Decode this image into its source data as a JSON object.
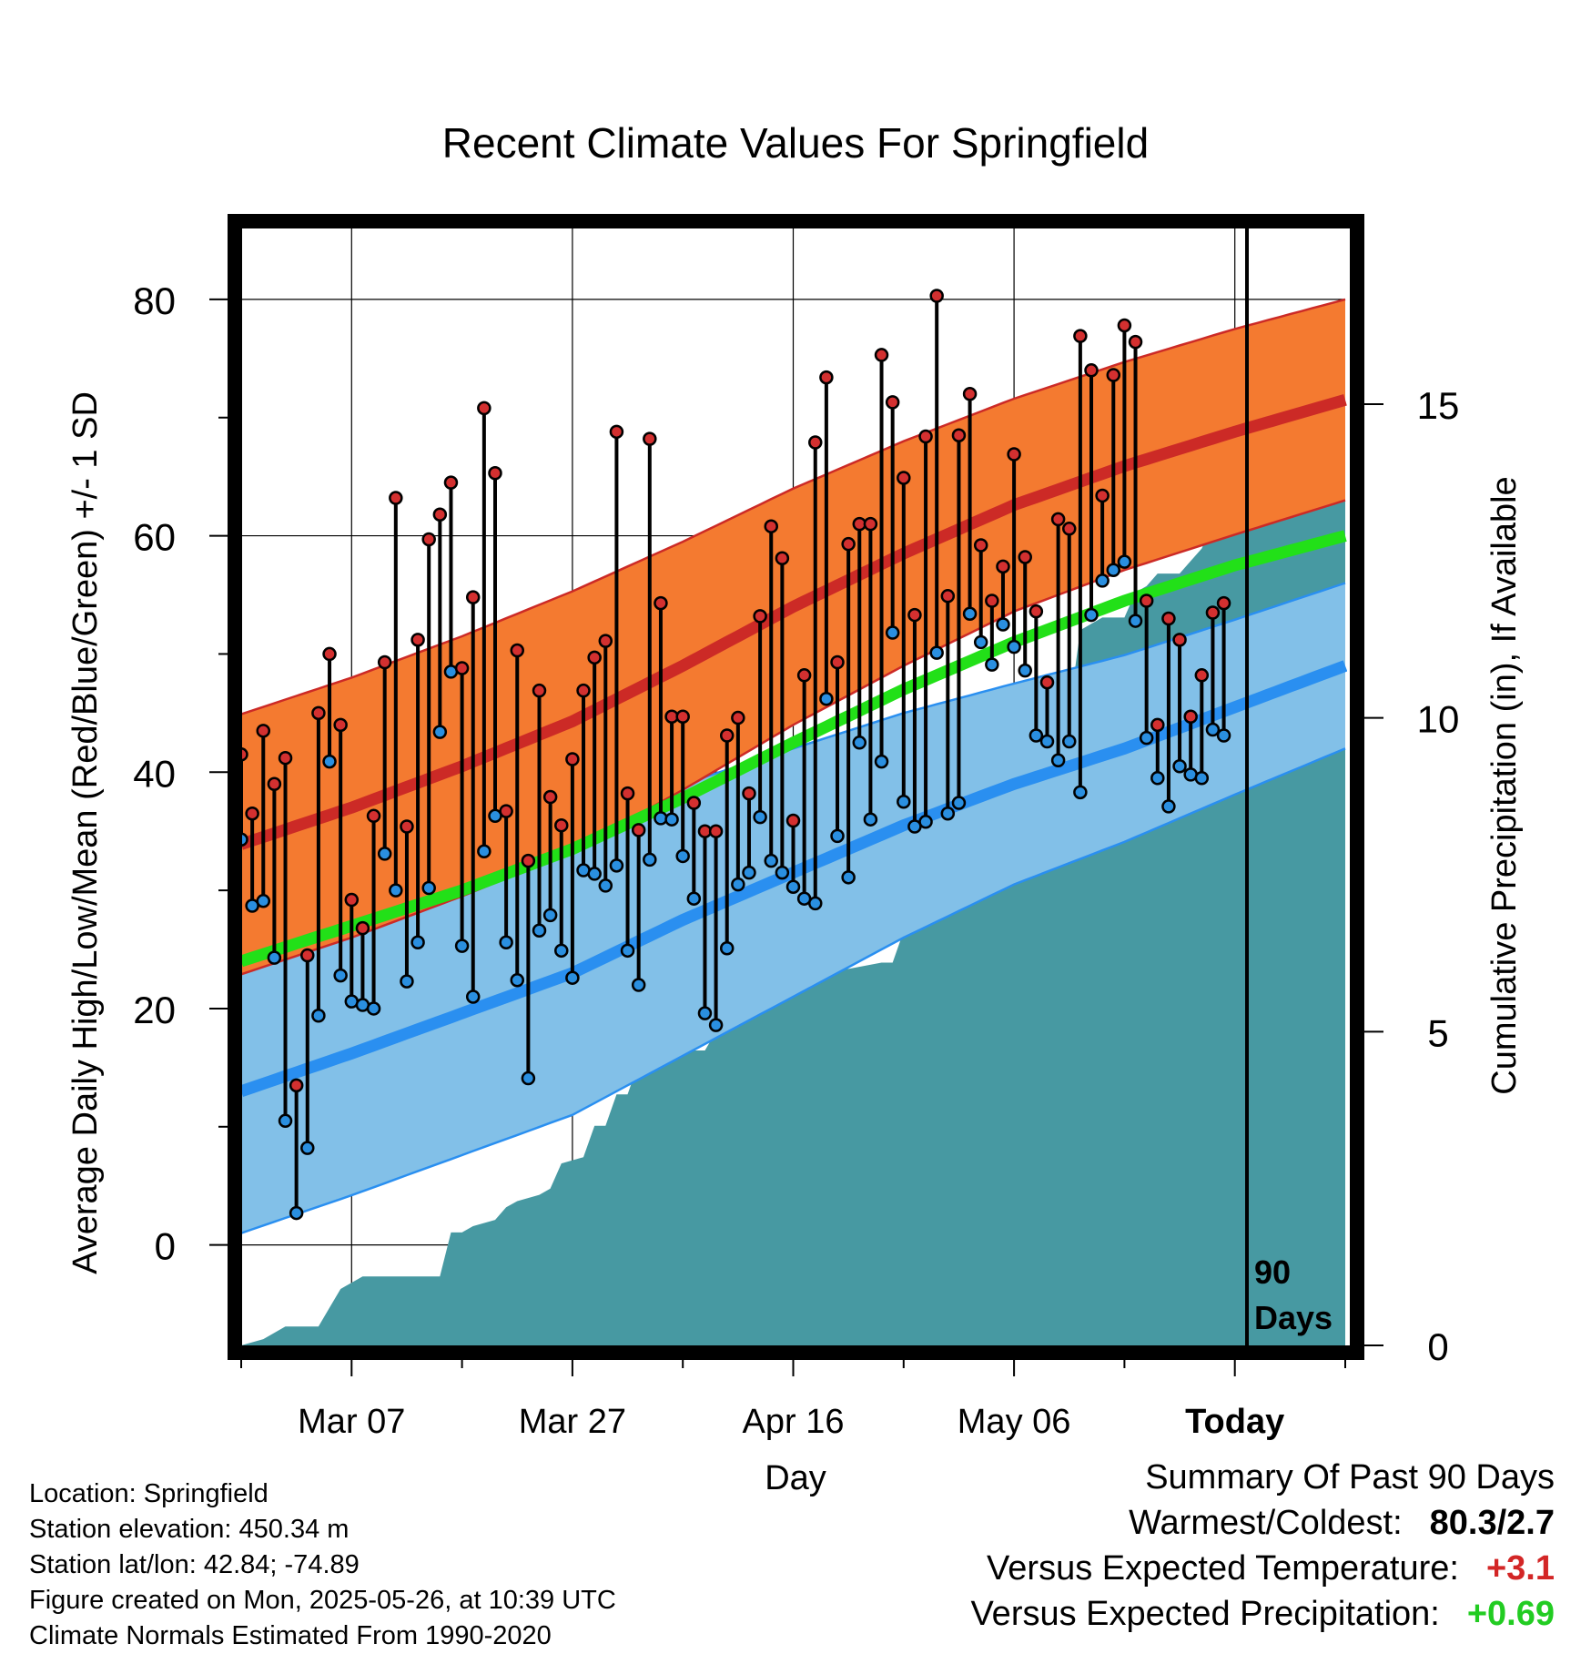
{
  "chart_data": {
    "type": "line",
    "title": "Recent Climate Values For Springfield",
    "xlabel": "Day",
    "ylabel": "Average Daily High/Low/Mean (Red/Blue/Green) +/- 1 SD",
    "y2label": "Cumulative Precipitation (in), If Available",
    "ylim": [
      -8.5,
      86
    ],
    "y2lim": [
      0,
      17.8
    ],
    "yticks": [
      "0",
      "20",
      "40",
      "60",
      "80"
    ],
    "y2ticks": [
      "0",
      "5",
      "10",
      "15"
    ],
    "xticks": [
      "Mar 07",
      "Mar 27",
      "Apr 16",
      "May 06",
      "Today"
    ],
    "xtick_days": [
      10,
      30,
      50,
      70,
      90
    ],
    "xlim": [
      0,
      100
    ],
    "today_label": "90 Days",
    "grid": true,
    "colors": {
      "high_band": "#f47a30",
      "high_line": "#cc2a26",
      "low_band": "#82c0e8",
      "low_line": "#2a8ff0",
      "mean_line": "#22e018",
      "precip": "#4799a2",
      "high_dot": "#d33030",
      "low_dot": "#2a8fe0"
    },
    "normals": {
      "days": [
        0,
        10,
        20,
        30,
        40,
        50,
        60,
        70,
        80,
        90,
        100
      ],
      "high_mean": [
        33.9,
        37.0,
        40.5,
        44.3,
        49.0,
        54.0,
        58.5,
        62.6,
        65.9,
        68.8,
        71.5
      ],
      "high_sd": [
        11.0,
        11.0,
        11.0,
        11.0,
        10.5,
        10.0,
        9.5,
        9.0,
        8.8,
        8.7,
        8.5
      ],
      "low_mean": [
        13.0,
        16.2,
        19.6,
        23.0,
        27.5,
        31.5,
        35.5,
        39.0,
        42.0,
        45.5,
        49.0
      ],
      "low_sd": [
        12.0,
        12.0,
        12.0,
        12.0,
        11.5,
        10.5,
        9.5,
        8.5,
        7.9,
        7.4,
        7.0
      ],
      "mean": [
        24.0,
        27.0,
        30.0,
        33.5,
        37.8,
        42.5,
        47.0,
        51.0,
        54.5,
        57.5,
        60.0
      ]
    },
    "series": [
      {
        "name": "High",
        "values": [
          41.5,
          36.5,
          43.5,
          39.0,
          41.2,
          13.5,
          24.5,
          45.0,
          50.0,
          44.0,
          29.2,
          26.8,
          36.3,
          49.3,
          63.2,
          35.4,
          51.2,
          59.7,
          61.8,
          64.5,
          48.8,
          54.8,
          70.8,
          65.3,
          36.7,
          50.3,
          32.5,
          46.9,
          37.9,
          35.5,
          41.1,
          46.9,
          49.7,
          51.1,
          68.8,
          38.2,
          35.1,
          68.2,
          54.3,
          44.7,
          44.7,
          37.4,
          35.0,
          35.0,
          43.1,
          44.6,
          38.2,
          53.2,
          60.8,
          58.1,
          35.9,
          48.2,
          67.9,
          73.4,
          49.3,
          59.3,
          61.0,
          61.0,
          75.3,
          71.3,
          64.9,
          53.3,
          68.4,
          80.3,
          54.9,
          68.5,
          72.0,
          59.2,
          54.5,
          57.4,
          66.9,
          58.2,
          53.6,
          47.6,
          61.4,
          60.6,
          76.9,
          74.0,
          63.4,
          73.6,
          77.8,
          76.4,
          54.5,
          44.0,
          53.0,
          51.2,
          44.7,
          48.2,
          53.5,
          54.3
        ]
      },
      {
        "name": "Low",
        "values": [
          34.3,
          28.7,
          29.1,
          24.3,
          10.5,
          2.7,
          8.2,
          19.4,
          40.9,
          22.8,
          20.6,
          20.3,
          20.0,
          33.1,
          30.0,
          22.3,
          25.6,
          30.2,
          43.4,
          48.5,
          25.3,
          21.0,
          33.3,
          36.3,
          25.6,
          22.4,
          14.1,
          26.6,
          27.9,
          24.9,
          22.6,
          31.7,
          31.4,
          30.4,
          32.1,
          24.9,
          22.0,
          32.6,
          36.1,
          36.0,
          32.9,
          29.3,
          19.6,
          18.6,
          25.1,
          30.5,
          31.5,
          36.2,
          32.5,
          31.5,
          30.3,
          29.3,
          28.9,
          46.2,
          34.6,
          31.1,
          42.5,
          36.0,
          40.9,
          51.8,
          37.5,
          35.4,
          35.8,
          50.1,
          36.5,
          37.4,
          53.4,
          51.0,
          49.1,
          52.5,
          50.6,
          48.6,
          43.1,
          42.6,
          41.0,
          42.6,
          38.3,
          53.3,
          56.2,
          57.1,
          57.8,
          52.8,
          42.9,
          39.5,
          37.1,
          40.5,
          39.8,
          39.5,
          43.6,
          43.1
        ]
      },
      {
        "name": "Cumulative Precipitation",
        "x": [
          0,
          2,
          4,
          5,
          6,
          7,
          8,
          9,
          10,
          11,
          17,
          18,
          19,
          20,
          21,
          23,
          24,
          25,
          27,
          28,
          29,
          31,
          32,
          33,
          34,
          35,
          36,
          37,
          38,
          39,
          40,
          41,
          42,
          43,
          44,
          45,
          46,
          47,
          48,
          49,
          50,
          52,
          53,
          54,
          55,
          58,
          59,
          60,
          61,
          62,
          63,
          64,
          65,
          66,
          67,
          68,
          69,
          70,
          71,
          72,
          73,
          74,
          75,
          76,
          77,
          78,
          79,
          80,
          81,
          82,
          83,
          84,
          85,
          86,
          87,
          88,
          89,
          90,
          100
        ],
        "values": [
          0.0,
          0.1,
          0.3,
          0.3,
          0.3,
          0.3,
          0.6,
          0.9,
          1.0,
          1.1,
          1.1,
          1.1,
          1.8,
          1.8,
          1.9,
          2.0,
          2.2,
          2.3,
          2.4,
          2.5,
          2.9,
          3.0,
          3.5,
          3.5,
          4.0,
          4.0,
          4.5,
          4.5,
          4.5,
          4.6,
          4.6,
          4.7,
          4.7,
          5.0,
          5.3,
          5.3,
          5.4,
          5.6,
          5.6,
          5.6,
          5.6,
          6.0,
          6.0,
          6.0,
          6.0,
          6.1,
          6.1,
          6.6,
          6.6,
          7.8,
          7.8,
          7.8,
          8.0,
          8.7,
          9.1,
          9.4,
          9.6,
          9.6,
          9.9,
          9.9,
          9.9,
          10.1,
          10.1,
          11.4,
          11.5,
          11.6,
          11.6,
          11.6,
          12.0,
          12.1,
          12.3,
          12.3,
          12.3,
          12.5,
          12.7,
          13.1,
          13.4,
          13.6,
          13.6
        ]
      }
    ]
  },
  "info": {
    "location": "Location: Springfield",
    "elevation": "Station elevation: 450.34 m",
    "latlon": "Station lat/lon: 42.84; -74.89",
    "created": "Figure created on Mon, 2025-05-26, at 10:39 UTC",
    "normals": "Climate Normals Estimated From 1990-2020"
  },
  "summary": {
    "heading": "Summary Of Past 90 Days",
    "warm_cold_label": "Warmest/Coldest:",
    "warm_cold_value": "80.3/2.7",
    "temp_label": "Versus Expected Temperature:",
    "temp_value": "+3.1",
    "precip_label": "Versus Expected Precipitation:",
    "precip_value": "+0.69"
  }
}
